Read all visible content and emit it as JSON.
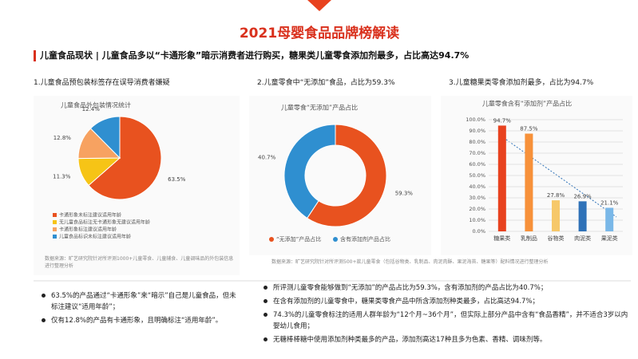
{
  "title": "2021母婴食品品牌榜解读",
  "subtitle": "儿童食品现状 | 儿童食品多以“卡通形象”暗示消费者进行购买，糖果类儿童零食添加剂最多，占比高达94.7%",
  "notes": [
    [
      "63.5%的产品通过“卡通形象”来“暗示”自己是儿童食品，但未标注建议“适用年龄”；",
      "仅有12.8%的产品有卡通形象，且明确标注“适用年龄”。"
    ],
    [
      "所评测儿童零食能够做到“无添加”的产品占比为59.3%，含有添加剂的产品占比为40.7%；",
      "在含有添加剂的儿童零食中，糖果类零食产品中所含添加剂种类最多，占比高达94.7%；",
      "74.3%的儿童零食标注的适用人群年龄为“12个月~36个月”，但实际上部分产品中含有“食品香精”，并不适合3岁以内婴幼儿食用；",
      "无糖棒棒糖中使用添加剂种类最多的产品，添加剂高达17种且多为色素、香精、调味剂等。"
    ]
  ],
  "chart_data": [
    {
      "type": "pie",
      "heading": "1.儿童食品预包装标签存在误导消费者嫌疑",
      "title": "儿童食品外包装情况统计",
      "source": "数据来源：旷艺研究院针对所评测1000+儿童零食、儿童辅食、儿童调味品的外包装信息进行整理分析",
      "categories": [
        "卡通形象未标注建议适用年龄",
        "无儿童食品标注无卡通形象无建议适用年龄",
        "卡通形象标注建议适用年龄",
        "儿童食品标识未标注建议适用年龄"
      ],
      "values": [
        63.5,
        11.3,
        12.8,
        12.4
      ],
      "value_labels": [
        "63.5%",
        "11.3%",
        "12.8%",
        "12.4%"
      ],
      "colors": [
        "#e8521f",
        "#f6c416",
        "#f7a261",
        "#2f8fd0"
      ],
      "legend": "bottom"
    },
    {
      "type": "donut",
      "heading": "2.儿童零食中“无添加”食品，占比为59.3%",
      "title": "儿童零食“无添加”产品占比",
      "source": "数据来源：旷艺研究院针对所评测500+款儿童零食（包括谷物类、乳制品、肉泥肉酥、果泥海苔、糖果等）配料情况进行整理分析",
      "categories": [
        "“无添加”产品占比",
        "含有添加剂产品占比"
      ],
      "values": [
        59.3,
        40.7
      ],
      "value_labels": [
        "59.3%",
        "40.7%"
      ],
      "colors": [
        "#e8521f",
        "#2f8fd0"
      ],
      "legend": "bottom"
    },
    {
      "type": "bar",
      "heading": "3.儿童糖果类零食添加剂最多，占比为94.7%",
      "title": "儿童零食含有“添加剂”产品占比",
      "categories": [
        "糖果类",
        "乳制品",
        "谷物类",
        "肉泥类",
        "果泥类"
      ],
      "values": [
        94.7,
        87.5,
        27.8,
        26.9,
        21.1
      ],
      "value_labels": [
        "94.7%",
        "87.5%",
        "27.8%",
        "26.9%",
        "21.1%"
      ],
      "colors": [
        "#e8421f",
        "#f7913a",
        "#f6c86a",
        "#2f72b8",
        "#7ab8e8"
      ],
      "ylim": [
        0,
        100
      ],
      "yticks": [
        {
          "value": 0,
          "label": "0.0%"
        },
        {
          "value": 10,
          "label": "10.0%"
        },
        {
          "value": 20,
          "label": "20.0%"
        },
        {
          "value": 30,
          "label": "30.0%"
        },
        {
          "value": 40,
          "label": "40.0%"
        },
        {
          "value": 50,
          "label": "50.0%"
        },
        {
          "value": 60,
          "label": "60.0%"
        },
        {
          "value": 70,
          "label": "70.0%"
        },
        {
          "value": 80,
          "label": "80.0%"
        },
        {
          "value": 90,
          "label": "90.0%"
        },
        {
          "value": 100,
          "label": "100.0%"
        }
      ],
      "grid": true
    }
  ]
}
